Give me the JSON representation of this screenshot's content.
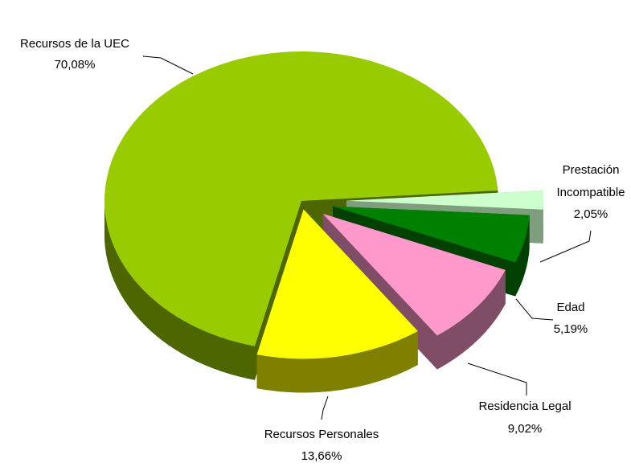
{
  "chart_data": {
    "type": "pie3d",
    "categories": [
      "Prestación Incompatible",
      "Edad",
      "Residencia Legal",
      "Recursos Personales",
      "Recursos de la UEC"
    ],
    "values": [
      2.05,
      5.19,
      9.02,
      13.66,
      70.08
    ],
    "value_labels": [
      "2,05%",
      "5,19%",
      "9,02%",
      "13,66%",
      "70,08%"
    ],
    "colors": [
      "#ccffcc",
      "#008000",
      "#ff99cc",
      "#ffff00",
      "#99cc00"
    ]
  }
}
